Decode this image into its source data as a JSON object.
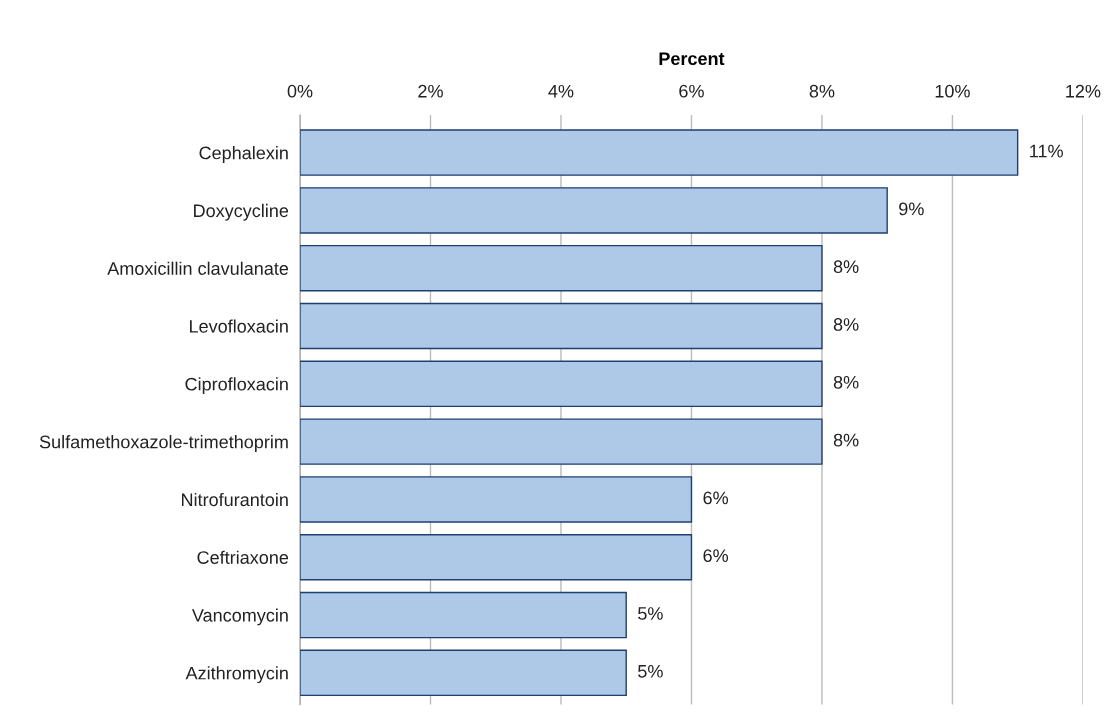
{
  "chart_data": {
    "type": "bar",
    "orientation": "horizontal",
    "xlabel": "Percent",
    "categories": [
      "Cephalexin",
      "Doxycycline",
      "Amoxicillin clavulanate",
      "Levofloxacin",
      "Ciprofloxacin",
      "Sulfamethoxazole-trimethoprim",
      "Nitrofurantoin",
      "Ceftriaxone",
      "Vancomycin",
      "Azithromycin"
    ],
    "values": [
      11,
      9,
      8,
      8,
      8,
      8,
      6,
      6,
      5,
      5
    ],
    "value_labels": [
      "11%",
      "9%",
      "8%",
      "8%",
      "8%",
      "8%",
      "6%",
      "6%",
      "5%",
      "5%"
    ],
    "color": "#aec8e8",
    "xlim": [
      0,
      12
    ],
    "xticks": [
      {
        "value": 0,
        "label": "0%"
      },
      {
        "value": 2,
        "label": "2%"
      },
      {
        "value": 4,
        "label": "4%"
      },
      {
        "value": 6,
        "label": "6%"
      },
      {
        "value": 8,
        "label": "8%"
      },
      {
        "value": 10,
        "label": "10%"
      },
      {
        "value": 12,
        "label": "12%"
      }
    ],
    "grid": "x",
    "legend": false
  }
}
